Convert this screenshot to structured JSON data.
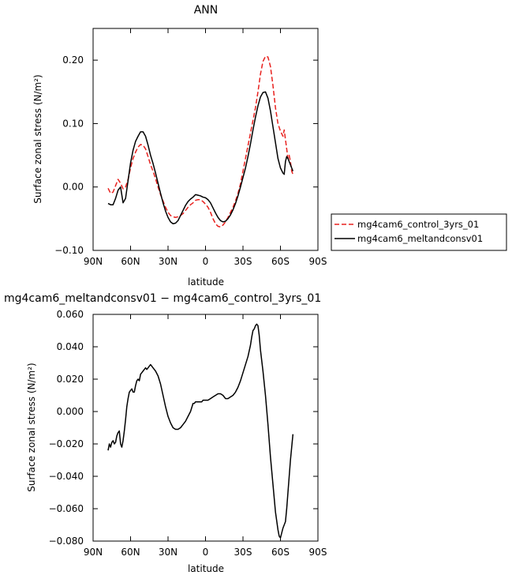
{
  "chart_data": [
    {
      "type": "line",
      "title": "ANN",
      "xlabel": "latitude",
      "ylabel": "Surface zonal stress (N/m²)",
      "xlim": [
        -90,
        90
      ],
      "ylim": [
        -0.1,
        0.25
      ],
      "x_ticks": [
        -90,
        -60,
        -30,
        0,
        30,
        60,
        90
      ],
      "x_tick_labels": [
        "90N",
        "60N",
        "30N",
        "0",
        "30S",
        "60S",
        "90S"
      ],
      "y_ticks": [
        -0.1,
        0.0,
        0.1,
        0.2
      ],
      "y_tick_labels": [
        "−0.10",
        "0.00",
        "0.10",
        "0.20"
      ],
      "legend_position": "right",
      "series": [
        {
          "name": "mg4cam6_control_3yrs_01",
          "color": "#e8211e",
          "dash": "dashed",
          "x": [
            -78,
            -76,
            -74,
            -72,
            -70,
            -68,
            -66,
            -64,
            -62,
            -60,
            -58,
            -56,
            -54,
            -52,
            -50,
            -48,
            -46,
            -44,
            -42,
            -40,
            -38,
            -36,
            -34,
            -32,
            -30,
            -28,
            -26,
            -24,
            -22,
            -20,
            -18,
            -16,
            -14,
            -12,
            -10,
            -8,
            -6,
            -4,
            -2,
            0,
            2,
            4,
            6,
            8,
            10,
            12,
            14,
            16,
            18,
            20,
            22,
            24,
            26,
            28,
            30,
            32,
            34,
            36,
            38,
            40,
            42,
            44,
            46,
            48,
            50,
            52,
            54,
            56,
            58,
            60,
            62,
            63,
            64,
            65,
            66,
            67,
            68,
            69,
            70
          ],
          "y": [
            -0.002,
            -0.01,
            -0.008,
            0.002,
            0.012,
            0.006,
            -0.003,
            0.0,
            0.012,
            0.03,
            0.045,
            0.055,
            0.063,
            0.067,
            0.066,
            0.06,
            0.048,
            0.035,
            0.025,
            0.013,
            0.0,
            -0.012,
            -0.022,
            -0.032,
            -0.04,
            -0.045,
            -0.047,
            -0.048,
            -0.047,
            -0.045,
            -0.042,
            -0.037,
            -0.032,
            -0.028,
            -0.025,
            -0.021,
            -0.02,
            -0.02,
            -0.023,
            -0.027,
            -0.032,
            -0.04,
            -0.05,
            -0.058,
            -0.062,
            -0.063,
            -0.06,
            -0.055,
            -0.048,
            -0.04,
            -0.032,
            -0.022,
            -0.01,
            0.005,
            0.025,
            0.045,
            0.065,
            0.085,
            0.105,
            0.125,
            0.15,
            0.178,
            0.198,
            0.206,
            0.205,
            0.19,
            0.16,
            0.125,
            0.1,
            0.088,
            0.08,
            0.09,
            0.075,
            0.06,
            0.045,
            0.05,
            0.04,
            0.025,
            0.02
          ]
        },
        {
          "name": "mg4cam6_meltandconsv01",
          "color": "#000000",
          "dash": "solid",
          "x": [
            -78,
            -76,
            -74,
            -72,
            -70,
            -68,
            -66,
            -64,
            -62,
            -60,
            -58,
            -56,
            -54,
            -52,
            -50,
            -48,
            -46,
            -44,
            -42,
            -40,
            -38,
            -36,
            -34,
            -32,
            -30,
            -28,
            -26,
            -24,
            -22,
            -20,
            -18,
            -16,
            -14,
            -12,
            -10,
            -8,
            -6,
            -4,
            -2,
            0,
            2,
            4,
            6,
            8,
            10,
            12,
            14,
            16,
            18,
            20,
            22,
            24,
            26,
            28,
            30,
            32,
            34,
            36,
            38,
            40,
            42,
            44,
            46,
            48,
            50,
            52,
            54,
            56,
            58,
            60,
            62,
            63,
            64,
            65,
            66,
            67,
            68,
            69,
            70
          ],
          "y": [
            -0.026,
            -0.028,
            -0.028,
            -0.018,
            -0.005,
            0.0,
            -0.025,
            -0.018,
            0.01,
            0.038,
            0.058,
            0.072,
            0.08,
            0.087,
            0.087,
            0.08,
            0.066,
            0.05,
            0.037,
            0.022,
            0.006,
            -0.01,
            -0.025,
            -0.038,
            -0.048,
            -0.055,
            -0.058,
            -0.057,
            -0.053,
            -0.045,
            -0.037,
            -0.029,
            -0.023,
            -0.019,
            -0.016,
            -0.012,
            -0.013,
            -0.014,
            -0.016,
            -0.017,
            -0.02,
            -0.025,
            -0.033,
            -0.041,
            -0.048,
            -0.053,
            -0.055,
            -0.054,
            -0.05,
            -0.044,
            -0.036,
            -0.026,
            -0.014,
            0.0,
            0.015,
            0.03,
            0.048,
            0.068,
            0.09,
            0.11,
            0.128,
            0.142,
            0.149,
            0.15,
            0.14,
            0.12,
            0.095,
            0.07,
            0.045,
            0.03,
            0.022,
            0.02,
            0.04,
            0.048,
            0.045,
            0.04,
            0.035,
            0.03,
            0.025
          ]
        }
      ]
    },
    {
      "type": "line",
      "title": "mg4cam6_meltandconsv01 − mg4cam6_control_3yrs_01",
      "xlabel": "latitude",
      "ylabel": "Surface zonal stress (N/m²)",
      "xlim": [
        -90,
        90
      ],
      "ylim": [
        -0.08,
        0.06
      ],
      "x_ticks": [
        -90,
        -60,
        -30,
        0,
        30,
        60,
        90
      ],
      "x_tick_labels": [
        "90N",
        "60N",
        "30N",
        "0",
        "30S",
        "60S",
        "90S"
      ],
      "y_ticks": [
        -0.08,
        -0.06,
        -0.04,
        -0.02,
        0.0,
        0.02,
        0.04,
        0.06
      ],
      "y_tick_labels": [
        "−0.080",
        "−0.060",
        "−0.040",
        "−0.020",
        "0.000",
        "0.020",
        "0.040",
        "0.060"
      ],
      "series": [
        {
          "color": "#000000",
          "dash": "solid",
          "x": [
            -78,
            -77,
            -76,
            -75,
            -74,
            -73,
            -72,
            -71,
            -70,
            -69,
            -68,
            -67,
            -66,
            -65,
            -64,
            -63,
            -62,
            -61,
            -60,
            -59,
            -58,
            -57,
            -56,
            -55,
            -54,
            -53,
            -52,
            -51,
            -50,
            -49,
            -48,
            -47,
            -46,
            -45,
            -44,
            -43,
            -42,
            -41,
            -40,
            -38,
            -36,
            -34,
            -32,
            -30,
            -28,
            -26,
            -24,
            -22,
            -20,
            -18,
            -16,
            -14,
            -12,
            -10,
            -9,
            -8,
            -7,
            -6,
            -5,
            -4,
            -3,
            -2,
            -1,
            0,
            2,
            4,
            6,
            8,
            10,
            12,
            14,
            16,
            18,
            20,
            22,
            24,
            26,
            28,
            30,
            32,
            34,
            36,
            37,
            38,
            39,
            40,
            41,
            42,
            43,
            44,
            46,
            48,
            50,
            52,
            54,
            56,
            58,
            59,
            60,
            61,
            62,
            63,
            64,
            65,
            66,
            67,
            68,
            69,
            70
          ],
          "y": [
            -0.024,
            -0.02,
            -0.022,
            -0.019,
            -0.018,
            -0.02,
            -0.019,
            -0.015,
            -0.013,
            -0.012,
            -0.02,
            -0.022,
            -0.018,
            -0.012,
            -0.005,
            0.003,
            0.008,
            0.012,
            0.013,
            0.014,
            0.012,
            0.012,
            0.016,
            0.019,
            0.02,
            0.019,
            0.023,
            0.024,
            0.025,
            0.026,
            0.027,
            0.026,
            0.027,
            0.028,
            0.029,
            0.028,
            0.027,
            0.026,
            0.025,
            0.022,
            0.017,
            0.01,
            0.003,
            -0.003,
            -0.007,
            -0.01,
            -0.011,
            -0.011,
            -0.01,
            -0.008,
            -0.006,
            -0.003,
            0.0,
            0.005,
            0.005,
            0.006,
            0.006,
            0.006,
            0.006,
            0.006,
            0.006,
            0.007,
            0.007,
            0.007,
            0.007,
            0.008,
            0.009,
            0.01,
            0.011,
            0.011,
            0.01,
            0.008,
            0.008,
            0.009,
            0.01,
            0.012,
            0.015,
            0.019,
            0.024,
            0.029,
            0.034,
            0.041,
            0.046,
            0.05,
            0.051,
            0.053,
            0.054,
            0.053,
            0.047,
            0.038,
            0.025,
            0.01,
            -0.008,
            -0.028,
            -0.045,
            -0.062,
            -0.073,
            -0.077,
            -0.078,
            -0.075,
            -0.072,
            -0.07,
            -0.068,
            -0.06,
            -0.05,
            -0.04,
            -0.03,
            -0.022,
            -0.014
          ]
        }
      ]
    }
  ]
}
